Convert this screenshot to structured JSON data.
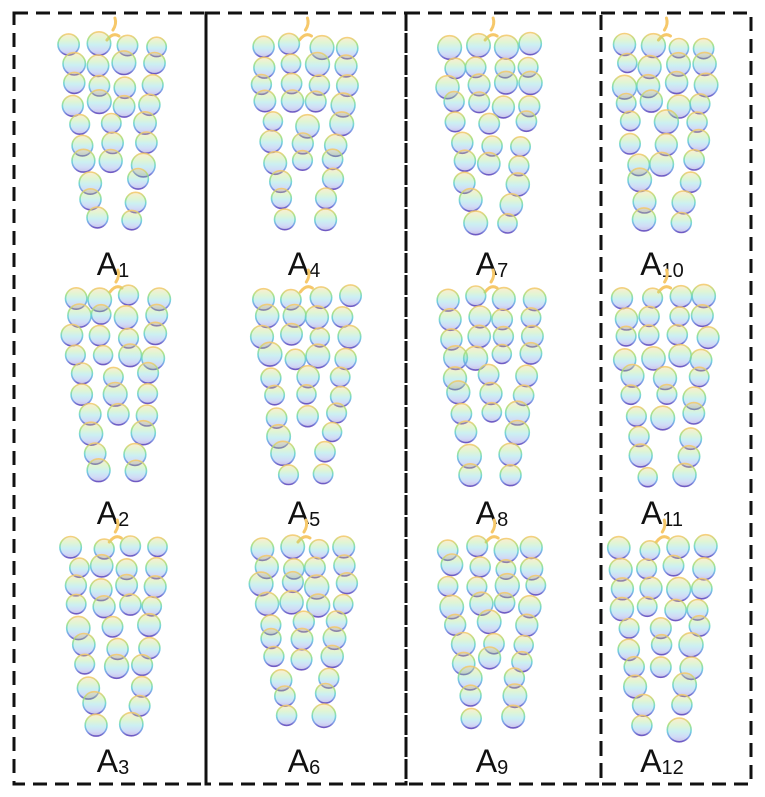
{
  "figure": {
    "groups": [
      {
        "name": "group-1",
        "panels": [
          {
            "letter": "A",
            "index": "1"
          },
          {
            "letter": "A",
            "index": "2"
          },
          {
            "letter": "A",
            "index": "3"
          }
        ]
      },
      {
        "name": "group-2",
        "panels": [
          {
            "letter": "A",
            "index": "4"
          },
          {
            "letter": "A",
            "index": "5"
          },
          {
            "letter": "A",
            "index": "6"
          }
        ]
      },
      {
        "name": "group-3",
        "panels": [
          {
            "letter": "A",
            "index": "7"
          },
          {
            "letter": "A",
            "index": "8"
          },
          {
            "letter": "A",
            "index": "9"
          }
        ]
      },
      {
        "name": "group-4",
        "panels": [
          {
            "letter": "A",
            "index": "10"
          },
          {
            "letter": "A",
            "index": "11"
          },
          {
            "letter": "A",
            "index": "12"
          }
        ]
      }
    ],
    "colors": {
      "gradient_top": "#f6c86a",
      "gradient_upper_mid": "#9ee07a",
      "gradient_mid": "#5fd0d6",
      "gradient_lower": "#6f8fe6",
      "gradient_bottom": "#5a3fb8",
      "box_stroke": "#111111"
    },
    "subject_icon": "grape-cluster-icon"
  }
}
